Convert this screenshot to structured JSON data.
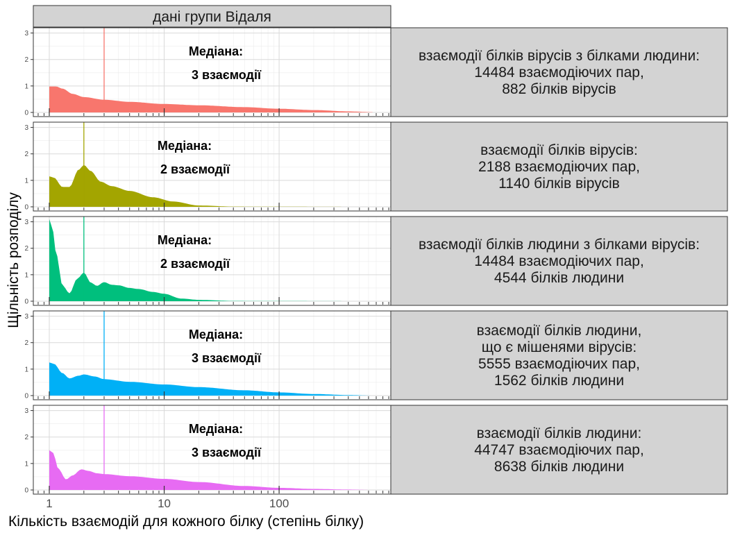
{
  "chart_data": {
    "type": "area",
    "top_strip": "дані групи Відаля",
    "xlabel": "Кількість взаємодій для кожного білку (степінь білку)",
    "ylabel": "Щільність розподілу",
    "x_scale": "log10",
    "xlim": [
      1,
      700
    ],
    "x_ticks": [
      1,
      10,
      100
    ],
    "x_tick_labels": [
      "1",
      "10",
      "100"
    ],
    "ylim": [
      0,
      3
    ],
    "y_ticks": [
      0,
      1,
      2,
      3
    ],
    "y_tick_labels": [
      "0",
      "1",
      "2",
      "3"
    ],
    "grid": true,
    "panels": [
      {
        "label_lines": [
          "взаємодії білків вірусів з білками людини:",
          "14484 взаємодіючих пар,",
          "882 білків вірусів"
        ],
        "color": "#F8766D",
        "median": 3,
        "median_lines": [
          "Медіана:",
          "3 взаємодії"
        ],
        "x": [
          1,
          1.15,
          1.3,
          1.6,
          2,
          3,
          5,
          10,
          20,
          50,
          100,
          200,
          400,
          650
        ],
        "y": [
          0.98,
          0.98,
          0.9,
          0.7,
          0.58,
          0.48,
          0.4,
          0.32,
          0.27,
          0.2,
          0.14,
          0.09,
          0.04,
          0.01
        ]
      },
      {
        "label_lines": [
          "взаємодії білків вірусів:",
          "2188 взаємодіючих пар,",
          "1140 білків вірусів"
        ],
        "color": "#A3A500",
        "median": 2,
        "median_lines": [
          "Медіана:",
          "2 взаємодії"
        ],
        "x": [
          1,
          1.1,
          1.3,
          1.5,
          1.8,
          2,
          2.3,
          2.8,
          3.5,
          5,
          8,
          12,
          20,
          40,
          100,
          650
        ],
        "y": [
          1.15,
          1.1,
          0.75,
          0.75,
          1.4,
          1.58,
          1.35,
          0.95,
          0.78,
          0.6,
          0.36,
          0.2,
          0.05,
          0.01,
          0.005,
          0.0
        ]
      },
      {
        "label_lines": [
          "взаємодії білків людини з білками вірусів:",
          "14484 взаємодіючих пар,",
          "4544 білків людини"
        ],
        "color": "#00BF7D",
        "median": 2,
        "median_lines": [
          "Медіана:",
          "2 взаємодії"
        ],
        "x": [
          1,
          1.06,
          1.15,
          1.3,
          1.5,
          1.75,
          2,
          2.3,
          2.6,
          3,
          3.5,
          4,
          5,
          6,
          8,
          10,
          14,
          20,
          40,
          100,
          650
        ],
        "y": [
          3.1,
          2.8,
          1.8,
          0.6,
          0.3,
          0.85,
          1.08,
          0.7,
          0.58,
          0.72,
          0.62,
          0.6,
          0.5,
          0.46,
          0.35,
          0.28,
          0.1,
          0.05,
          0.01,
          0.005,
          0.0
        ]
      },
      {
        "label_lines": [
          "взаємодії білків людини,",
          "що є мішенями вірусів:",
          "5555 взаємодіючих пар,",
          "1562 білків людини"
        ],
        "color": "#00B0F6",
        "median": 3,
        "median_lines": [
          "Медіана:",
          "3 взаємодії"
        ],
        "x": [
          1,
          1.1,
          1.3,
          1.5,
          1.8,
          2,
          2.5,
          3,
          5,
          10,
          20,
          50,
          100,
          200,
          400,
          650
        ],
        "y": [
          1.25,
          1.2,
          0.85,
          0.65,
          0.75,
          0.8,
          0.72,
          0.62,
          0.52,
          0.42,
          0.32,
          0.2,
          0.12,
          0.06,
          0.02,
          0.0
        ]
      },
      {
        "label_lines": [
          "взаємодії білків людини:",
          "44747 взаємодіючих пар,",
          "8638 білків людини"
        ],
        "color": "#E76BF3",
        "median": 3,
        "median_lines": [
          "Медіана:",
          "3 взаємодії"
        ],
        "x": [
          1,
          1.08,
          1.2,
          1.4,
          1.6,
          1.9,
          2.2,
          2.6,
          3,
          5,
          10,
          20,
          50,
          100,
          200,
          400,
          650
        ],
        "y": [
          1.5,
          1.4,
          0.8,
          0.4,
          0.55,
          0.78,
          0.72,
          0.63,
          0.6,
          0.52,
          0.42,
          0.3,
          0.15,
          0.08,
          0.04,
          0.015,
          0.0
        ]
      }
    ]
  }
}
